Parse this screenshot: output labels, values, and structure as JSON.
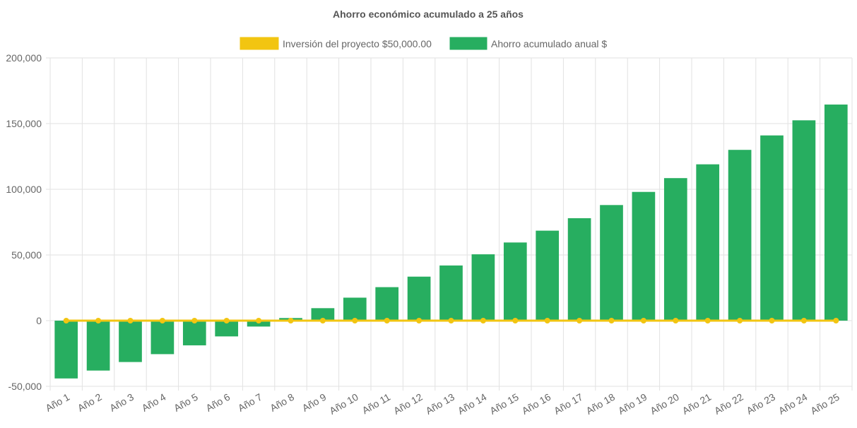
{
  "chart_data": {
    "type": "bar",
    "title": "Ahorro económico acumulado a 25 años",
    "legend_position": "top",
    "grid": true,
    "categories": [
      "Año 1",
      "Año 2",
      "Año 3",
      "Año 4",
      "Año 5",
      "Año 6",
      "Año 7",
      "Año 8",
      "Año 9",
      "Año 10",
      "Año 11",
      "Año 12",
      "Año 13",
      "Año 14",
      "Año 15",
      "Año 16",
      "Año 17",
      "Año 18",
      "Año 19",
      "Año 20",
      "Año 21",
      "Año 22",
      "Año 23",
      "Año 24",
      "Año 25"
    ],
    "ylim": [
      -50000,
      200000
    ],
    "yticks": [
      -50000,
      0,
      50000,
      100000,
      150000,
      200000
    ],
    "ytick_labels": [
      "-50,000",
      "0",
      "50,000",
      "100,000",
      "150,000",
      "200,000"
    ],
    "series": [
      {
        "name": "Inversión del proyecto $50,000.00",
        "type": "line",
        "color": "#f2c511",
        "values": [
          0,
          0,
          0,
          0,
          0,
          0,
          0,
          0,
          0,
          0,
          0,
          0,
          0,
          0,
          0,
          0,
          0,
          0,
          0,
          0,
          0,
          0,
          0,
          0,
          0
        ]
      },
      {
        "name": "Ahorro acumulado anual $",
        "type": "bar",
        "color": "#27ae60",
        "values": [
          -44000,
          -38000,
          -31500,
          -25500,
          -18800,
          -12000,
          -4500,
          2000,
          9500,
          17500,
          25500,
          33500,
          42000,
          50500,
          59500,
          68500,
          78000,
          88000,
          98000,
          108500,
          119000,
          130000,
          141000,
          152500,
          164500
        ]
      }
    ]
  }
}
